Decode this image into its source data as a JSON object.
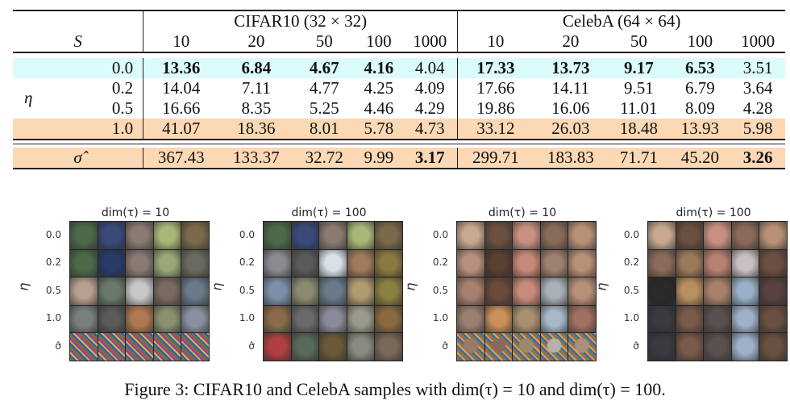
{
  "table": {
    "header": {
      "s_label": "S",
      "group1": "CIFAR10 (32 × 32)",
      "group2": "CelebA (64 × 64)",
      "columns": [
        "10",
        "20",
        "50",
        "100",
        "1000",
        "10",
        "20",
        "50",
        "100",
        "1000"
      ]
    },
    "eta_label": "η",
    "rows": [
      {
        "eta": "0.0",
        "highlight": "cyan",
        "values": [
          "13.36",
          "6.84",
          "4.67",
          "4.16",
          "4.04",
          "17.33",
          "13.73",
          "9.17",
          "6.53",
          "3.51"
        ],
        "bold": [
          true,
          true,
          true,
          true,
          false,
          true,
          true,
          true,
          true,
          false
        ]
      },
      {
        "eta": "0.2",
        "highlight": "none",
        "values": [
          "14.04",
          "7.11",
          "4.77",
          "4.25",
          "4.09",
          "17.66",
          "14.11",
          "9.51",
          "6.79",
          "3.64"
        ],
        "bold": [
          false,
          false,
          false,
          false,
          false,
          false,
          false,
          false,
          false,
          false
        ]
      },
      {
        "eta": "0.5",
        "highlight": "none",
        "values": [
          "16.66",
          "8.35",
          "5.25",
          "4.46",
          "4.29",
          "19.86",
          "16.06",
          "11.01",
          "8.09",
          "4.28"
        ],
        "bold": [
          false,
          false,
          false,
          false,
          false,
          false,
          false,
          false,
          false,
          false
        ]
      },
      {
        "eta": "1.0",
        "highlight": "orange",
        "values": [
          "41.07",
          "18.36",
          "8.01",
          "5.78",
          "4.73",
          "33.12",
          "26.03",
          "18.48",
          "13.93",
          "5.98"
        ],
        "bold": [
          false,
          false,
          false,
          false,
          false,
          false,
          false,
          false,
          false,
          false
        ]
      }
    ],
    "sigma_row": {
      "label": "σ̂",
      "values": [
        "367.43",
        "133.37",
        "32.72",
        "9.99",
        "3.17",
        "299.71",
        "183.83",
        "71.71",
        "45.20",
        "3.26"
      ],
      "bold": [
        false,
        false,
        false,
        false,
        true,
        false,
        false,
        false,
        false,
        true
      ]
    },
    "colors": {
      "cyan": "#dcfbfd",
      "orange": "#fcd8b4"
    }
  },
  "figures": {
    "row_labels": [
      "0.0",
      "0.2",
      "0.5",
      "1.0",
      "σ̂"
    ],
    "axis_label": "η",
    "panels": [
      {
        "dataset": "CIFAR10",
        "title": "dim(τ) = 10",
        "palette": [
          [
            "#4c6a4a",
            "#3a4a7a",
            "#8a7a70",
            "#a9b878",
            "#7a6a4a"
          ],
          [
            "#4c6a4a",
            "#2a3a6a",
            "#8a7a74",
            "#9aa878",
            "#6a6a60"
          ],
          [
            "#b8a090",
            "#6a7a6a",
            "#c8c8c8",
            "#7a6a60",
            "#6a7a8a"
          ],
          [
            "#7a8080",
            "#5a5a58",
            "#b07850",
            "#8a9070",
            "#8a90a0"
          ],
          [
            "#8a6a7a",
            "#7a7a6a",
            "#8a8080",
            "#7a8a8a",
            "#6a7a7a"
          ]
        ]
      },
      {
        "dataset": "CIFAR10",
        "title": "dim(τ) = 100",
        "palette": [
          [
            "#4c6a4a",
            "#3a4a7a",
            "#8a7a70",
            "#a9b878",
            "#7a6a4a"
          ],
          [
            "#8a8a90",
            "#5a5a5a",
            "#d8e0e8",
            "#a07a5a",
            "#8a7a40"
          ],
          [
            "#7a90a8",
            "#8a8a70",
            "#6a7a8a",
            "#b09a70",
            "#8a8040"
          ],
          [
            "#8a6a4a",
            "#6a6a6a",
            "#8a8a9a",
            "#9a9a8a",
            "#8a6a40"
          ],
          [
            "#b04040",
            "#5a6a5a",
            "#6a5a3a",
            "#8a8a80",
            "#7a6a5a"
          ]
        ]
      },
      {
        "dataset": "CelebA",
        "title": "dim(τ) = 10",
        "palette": [
          [
            "#c8a890",
            "#6a5040",
            "#c89080",
            "#8a6a5a",
            "#b89078"
          ],
          [
            "#b89080",
            "#5a4030",
            "#c88a78",
            "#a08070",
            "#b89078"
          ],
          [
            "#a88070",
            "#6a4a3a",
            "#c88a7a",
            "#a8b0b8",
            "#b89078"
          ],
          [
            "#9a8070",
            "#c8905a",
            "#a89070",
            "#a8b8c8",
            "#a07060"
          ],
          [
            "#9a7a6a",
            "#8a6a5a",
            "#9a8a6a",
            "#b8b0a8",
            "#a89080"
          ]
        ]
      },
      {
        "dataset": "CelebA",
        "title": "dim(τ) = 100",
        "palette": [
          [
            "#c8a890",
            "#6a5040",
            "#c89080",
            "#8a6a5a",
            "#b89078"
          ],
          [
            "#8a6a5a",
            "#9a7a5a",
            "#b88070",
            "#c8c0c0",
            "#6a5040"
          ],
          [
            "#2a2a2a",
            "#b89060",
            "#a8806a",
            "#9ab0c8",
            "#5a4040"
          ],
          [
            "#3a3a40",
            "#7a5a4a",
            "#5a5050",
            "#a0b0c8",
            "#6a5040"
          ],
          [
            "#3a3a40",
            "#7a5a4a",
            "#5a5050",
            "#a0b0c8",
            "#6a5040"
          ]
        ]
      }
    ]
  },
  "caption": "Figure 3: CIFAR10 and CelebA samples with dim(τ) = 10 and dim(τ) = 100."
}
